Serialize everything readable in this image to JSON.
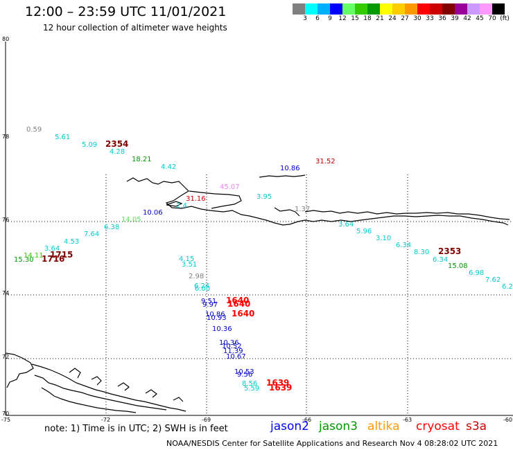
{
  "title": "12:00 – 23:59 UTC 11/01/2021",
  "subtitle": "12 hour collection of altimeter wave heights",
  "colorbar": {
    "colors": [
      "#808080",
      "#00ffff",
      "#00b0ff",
      "#0000ff",
      "#66ff66",
      "#33cc00",
      "#009900",
      "#ffff00",
      "#ffcc00",
      "#ff9900",
      "#ff0000",
      "#cc0000",
      "#800000",
      "#990099",
      "#cc99ff",
      "#ff99ff",
      "#000000"
    ],
    "labels": [
      "3",
      "6",
      "9",
      "12",
      "15",
      "18",
      "21",
      "24",
      "27",
      "30",
      "33",
      "36",
      "39",
      "42",
      "45",
      "70",
      "(ft)"
    ]
  },
  "axes": {
    "lat_labels": [
      "80",
      "78",
      "76",
      "74",
      "72",
      "70"
    ],
    "lon_labels": [
      "-75",
      "-72",
      "-69",
      "-66",
      "-63",
      "-60"
    ]
  },
  "observations": [
    {
      "t": "0.59",
      "c": "#808080"
    },
    {
      "t": "5.61",
      "c": "#00cccc"
    },
    {
      "t": "5.09",
      "c": "#00cccc"
    },
    {
      "t": "2354",
      "c": "#800000"
    },
    {
      "t": "4.28",
      "c": "#00cccc"
    },
    {
      "t": "18.21",
      "c": "#009900"
    },
    {
      "t": "4.42",
      "c": "#00cccc"
    },
    {
      "t": "10.86",
      "c": "#0000cc"
    },
    {
      "t": "31.52",
      "c": "#cc0000"
    },
    {
      "t": "45.07",
      "c": "#ee82ee"
    },
    {
      "t": "3.95",
      "c": "#00cccc"
    },
    {
      "t": "31.16",
      "c": "#cc0000"
    },
    {
      "t": "2.4",
      "c": "#00cccc"
    },
    {
      "t": "10.06",
      "c": "#0000cc"
    },
    {
      "t": "14.05",
      "c": "#66dd66"
    },
    {
      "t": "6.38",
      "c": "#00cccc"
    },
    {
      "t": "1.37",
      "c": "#808080"
    },
    {
      "t": "3.64",
      "c": "#00cccc"
    },
    {
      "t": "5.96",
      "c": "#00cccc"
    },
    {
      "t": "3.10",
      "c": "#00cccc"
    },
    {
      "t": "7.64",
      "c": "#00cccc"
    },
    {
      "t": "4.53",
      "c": "#00cccc"
    },
    {
      "t": "3.64",
      "c": "#00cccc"
    },
    {
      "t": "14.11",
      "c": "#33cc00"
    },
    {
      "t": "1715",
      "c": "#800000"
    },
    {
      "t": "15.30",
      "c": "#009900"
    },
    {
      "t": "1716",
      "c": "#800000"
    },
    {
      "t": "6.34",
      "c": "#00cccc"
    },
    {
      "t": "8.30",
      "c": "#00cccc"
    },
    {
      "t": "2353",
      "c": "#800000"
    },
    {
      "t": "6.34",
      "c": "#00cccc"
    },
    {
      "t": "15.08",
      "c": "#009900"
    },
    {
      "t": "6.98",
      "c": "#00cccc"
    },
    {
      "t": "7.62",
      "c": "#00cccc"
    },
    {
      "t": "6.2",
      "c": "#00cccc"
    },
    {
      "t": "4.15",
      "c": "#00cccc"
    },
    {
      "t": "3.51",
      "c": "#00cccc"
    },
    {
      "t": "2.98",
      "c": "#808080"
    },
    {
      "t": "6.24",
      "c": "#00cccc"
    },
    {
      "t": "6.00",
      "c": "#00cccc"
    },
    {
      "t": "9.51",
      "c": "#0000cc"
    },
    {
      "t": "9.97",
      "c": "#0000cc"
    },
    {
      "t": "1640",
      "c": "#ff0000"
    },
    {
      "t": "1640",
      "c": "#ff0000"
    },
    {
      "t": "10.86",
      "c": "#0000cc"
    },
    {
      "t": "10.93",
      "c": "#0000cc"
    },
    {
      "t": "1640",
      "c": "#ff0000"
    },
    {
      "t": "10.36",
      "c": "#0000cc"
    },
    {
      "t": "10.36",
      "c": "#0000cc"
    },
    {
      "t": "10.52",
      "c": "#0000cc"
    },
    {
      "t": "11.39",
      "c": "#0000cc"
    },
    {
      "t": "10.67",
      "c": "#0000cc"
    },
    {
      "t": "10.53",
      "c": "#0000cc"
    },
    {
      "t": "9.56",
      "c": "#0000cc"
    },
    {
      "t": "8.56",
      "c": "#00cccc"
    },
    {
      "t": "5.59",
      "c": "#00cccc"
    },
    {
      "t": "1639",
      "c": "#ff0000"
    },
    {
      "t": "1639",
      "c": "#ff0000"
    }
  ],
  "note": "note: 1) Time is in UTC; 2) SWH is in feet",
  "satellites": [
    {
      "name": "jason2",
      "color": "#0000ff"
    },
    {
      "name": "jason3",
      "color": "#009900"
    },
    {
      "name": "altika",
      "color": "#ff9900"
    },
    {
      "name": "cryosat",
      "color": "#ff0000"
    },
    {
      "name": "s3a",
      "color": "#cc0000"
    }
  ],
  "footer": "NOAA/NESDIS Center for Satellite Applications and Research   Nov  4 08:28:02 UTC 2021"
}
